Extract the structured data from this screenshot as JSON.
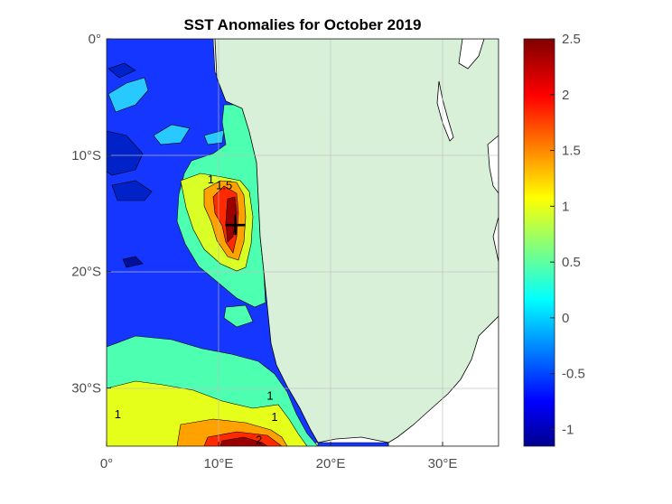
{
  "chart_data": {
    "type": "heatmap",
    "title": "SST Anomalies for October 2019",
    "xlabel": "",
    "ylabel": "",
    "xlim": [
      0,
      35
    ],
    "ylim": [
      -35,
      0
    ],
    "x_ticks": [
      {
        "value": 0,
        "label": "0°"
      },
      {
        "value": 10,
        "label": "10°E"
      },
      {
        "value": 20,
        "label": "20°E"
      },
      {
        "value": 30,
        "label": "30°E"
      }
    ],
    "y_ticks": [
      {
        "value": 0,
        "label": "0°"
      },
      {
        "value": -10,
        "label": "10°S"
      },
      {
        "value": -20,
        "label": "20°S"
      },
      {
        "value": -30,
        "label": "30°S"
      }
    ],
    "grid": true,
    "colorbar": {
      "min": -1.15,
      "max": 2.5,
      "colormap": "jet",
      "ticks": [
        {
          "value": 2.5,
          "label": "2.5"
        },
        {
          "value": 2,
          "label": "2"
        },
        {
          "value": 1.5,
          "label": "1.5"
        },
        {
          "value": 1,
          "label": "1"
        },
        {
          "value": 0.5,
          "label": "0.5"
        },
        {
          "value": 0,
          "label": "0"
        },
        {
          "value": -0.5,
          "label": "-0.5"
        },
        {
          "value": -1,
          "label": "-1"
        }
      ]
    },
    "contour_labels": [
      {
        "lon": 9.3,
        "lat": -12.1,
        "text": "1"
      },
      {
        "lon": 10.5,
        "lat": -12.6,
        "text": "1.5"
      },
      {
        "lon": 14.6,
        "lat": -30.7,
        "text": "1"
      },
      {
        "lon": 15.0,
        "lat": -32.5,
        "text": "1"
      },
      {
        "lon": 1.0,
        "lat": -32.3,
        "text": "1"
      },
      {
        "lon": 13.6,
        "lat": -34.5,
        "text": "2"
      }
    ],
    "marker": {
      "lon": 11.5,
      "lat": -16.0,
      "symbol": "+"
    },
    "colors": {
      "land": "#d8f0d8",
      "coast_outline": "#000000",
      "background": "#ffffff",
      "grid": "#bfbfbf"
    }
  }
}
